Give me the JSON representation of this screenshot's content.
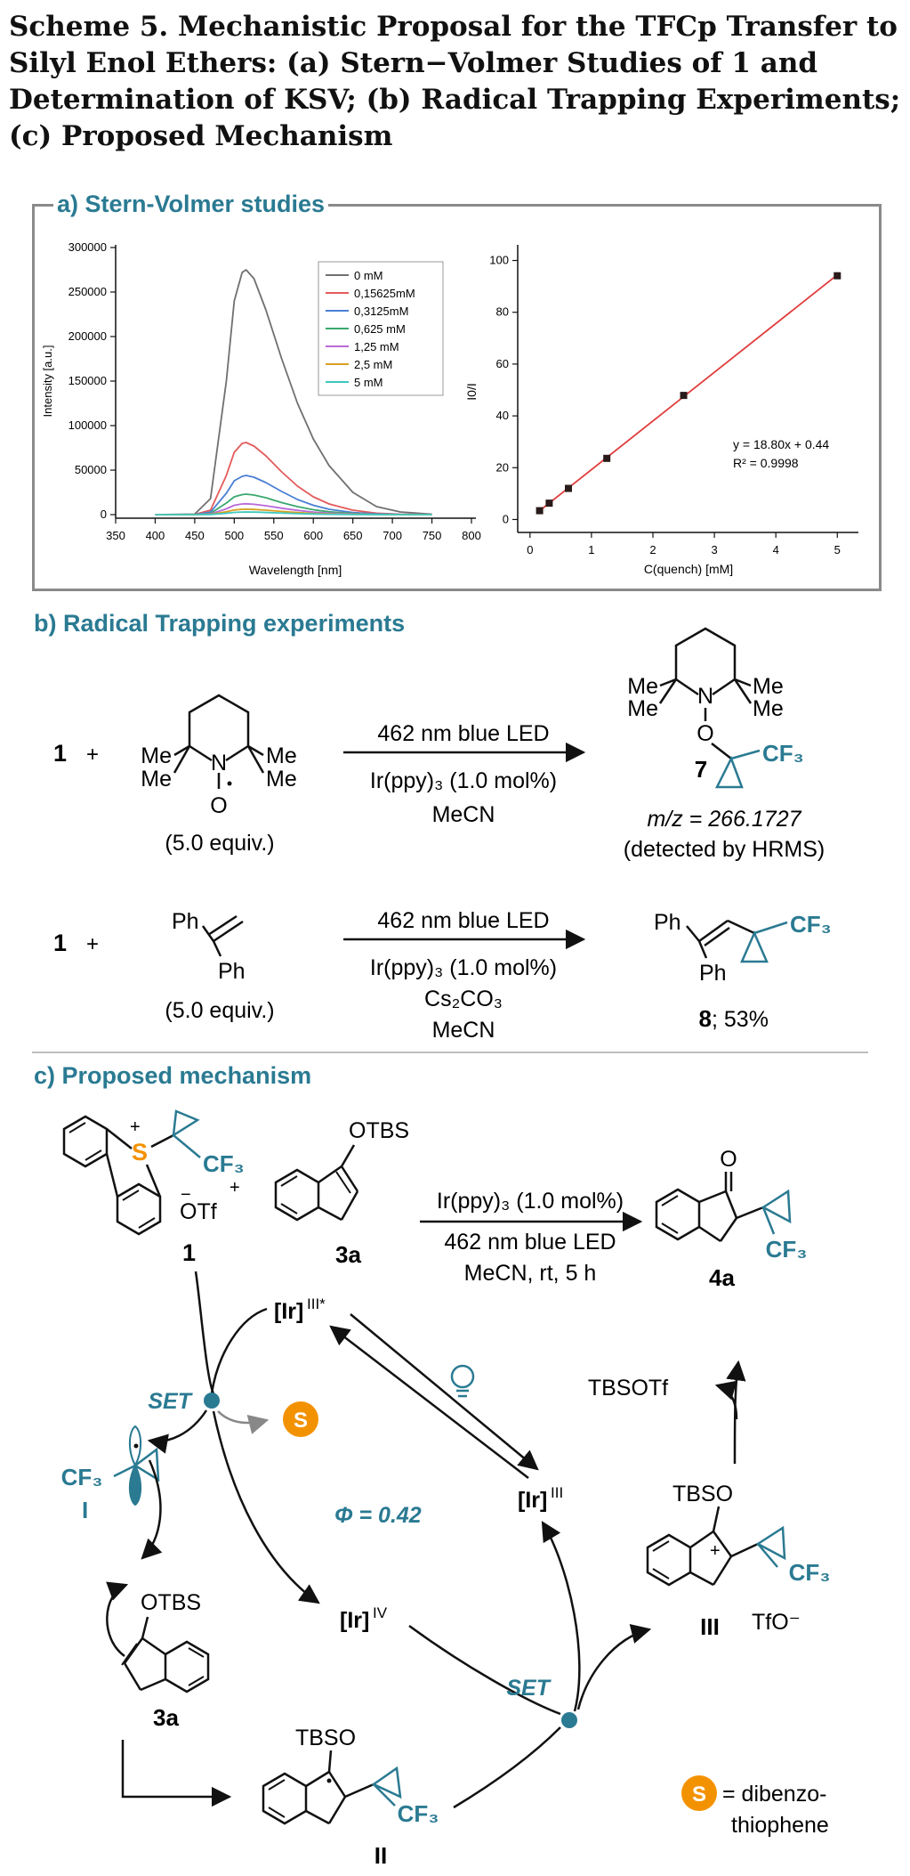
{
  "caption": "Scheme 5. Mechanistic Proposal for the TFCp Transfer to Silyl Enol Ethers: (a) Stern−Volmer Studies of 1 and Determination of KSV; (b) Radical Trapping Experiments; (c) Proposed Mechanism",
  "sections": {
    "a": "a) Stern-Volmer studies",
    "b": "b) Radical Trapping experiments",
    "c": "c) Proposed mechanism"
  },
  "colors": {
    "accent": "#2a7a92",
    "sulfur": "#f39200",
    "fit_line": "#e03c3c"
  },
  "chart_data": [
    {
      "type": "line",
      "xlabel": "Wavelength [nm]",
      "ylabel": "Intensity [a.u.]",
      "xlim": [
        350,
        800
      ],
      "ylim": [
        0,
        300000
      ],
      "xticks": [
        350,
        400,
        450,
        500,
        550,
        600,
        650,
        700,
        750,
        800
      ],
      "yticks": [
        0,
        50000,
        100000,
        150000,
        200000,
        250000,
        300000
      ],
      "legend_position": "top-right",
      "x": [
        400,
        450,
        470,
        490,
        500,
        510,
        515,
        525,
        540,
        560,
        580,
        600,
        620,
        650,
        680,
        710,
        750
      ],
      "series": [
        {
          "name": "0 mM",
          "color": "#707070",
          "values": [
            0,
            600,
            18000,
            150000,
            240000,
            272000,
            275000,
            265000,
            230000,
            175000,
            125000,
            85000,
            55000,
            25000,
            9000,
            3000,
            500
          ]
        },
        {
          "name": "0,15625mM",
          "color": "#e35b5b",
          "values": [
            0,
            200,
            5000,
            44000,
            70000,
            80000,
            81000,
            77000,
            66000,
            48000,
            32000,
            20000,
            12000,
            5000,
            1600,
            500,
            100
          ]
        },
        {
          "name": "0,3125mM",
          "color": "#4a7fd4",
          "values": [
            0,
            120,
            2800,
            24000,
            38000,
            43000,
            44000,
            42000,
            36000,
            26000,
            17000,
            10500,
            6000,
            2400,
            800,
            250,
            50
          ]
        },
        {
          "name": "0,625 mM",
          "color": "#3aa86e",
          "values": [
            0,
            70,
            1500,
            13000,
            20000,
            22500,
            23000,
            22000,
            19000,
            13500,
            9000,
            5500,
            3200,
            1300,
            400,
            120,
            20
          ]
        },
        {
          "name": "1,25 mM",
          "color": "#b96ad9",
          "values": [
            0,
            40,
            800,
            6500,
            10500,
            12000,
            12200,
            11600,
            10000,
            7200,
            4800,
            2900,
            1700,
            700,
            200,
            60,
            10
          ]
        },
        {
          "name": "2,5 mM",
          "color": "#d9a020",
          "values": [
            0,
            20,
            400,
            3200,
            5200,
            6000,
            6100,
            5800,
            5000,
            3600,
            2400,
            1400,
            800,
            330,
            100,
            30,
            5
          ]
        },
        {
          "name": "5 mM",
          "color": "#3cc8c0",
          "values": [
            0,
            10,
            180,
            1500,
            2500,
            2900,
            3000,
            2850,
            2450,
            1750,
            1150,
            700,
            400,
            160,
            50,
            15,
            2
          ]
        }
      ]
    },
    {
      "type": "scatter",
      "xlabel": "C(quench) [mM]",
      "ylabel": "I0/I",
      "xlim": [
        -0.2,
        5.3
      ],
      "ylim": [
        -5,
        105
      ],
      "xticks": [
        0,
        1,
        2,
        3,
        4,
        5
      ],
      "yticks": [
        0,
        20,
        40,
        60,
        80,
        100
      ],
      "x": [
        0.15625,
        0.3125,
        0.625,
        1.25,
        2.5,
        5
      ],
      "values": [
        3.4,
        6.3,
        12.0,
        23.6,
        47.9,
        94.1
      ],
      "fit": {
        "slope": 18.8,
        "intercept": 0.44
      },
      "annotation": [
        "y = 18.80x + 0.44",
        "R² = 0.9998"
      ]
    }
  ],
  "trapping": {
    "r1": {
      "reactant": "1",
      "plus": "+",
      "equiv": "(5.0 equiv.)",
      "cond_top": "462 nm blue LED",
      "cond_bottom": [
        "Ir(ppy)₃ (1.0 mol%)",
        "MeCN"
      ],
      "product_num": "7",
      "mz": "m/z = 266.1727",
      "detected": "(detected by HRMS)",
      "me": "Me",
      "n": "N",
      "o": "O",
      "cf3": "CF₃"
    },
    "r2": {
      "reactant": "1",
      "plus": "+",
      "equiv": "(5.0 equiv.)",
      "cond_top": "462 nm blue LED",
      "cond_bottom": [
        "Ir(ppy)₃ (1.0 mol%)",
        "Cs₂CO₃",
        "MeCN"
      ],
      "ph": "Ph",
      "product_num": "8",
      "yield": "; 53%",
      "cf3": "CF₃"
    }
  },
  "mechanism": {
    "reagent_1": "1",
    "s_plus": "S",
    "otf": "OTf",
    "cf3": "CF₃",
    "otbs": "OTBS",
    "label_3a": "3a",
    "cond": [
      "Ir(ppy)₃ (1.0 mol%)",
      "462 nm blue LED",
      "MeCN, rt, 5 h"
    ],
    "ketone_o": "O",
    "label_4a": "4a",
    "ir3star": "[Ir]III*",
    "ir3": "[Ir]III",
    "ir4": "[Ir]IV",
    "set": "SET",
    "s_circle": "S",
    "label_I": "I",
    "phi": "Φ = 0.42",
    "tbsotf": "TBSOTf",
    "tbso": "TBSO",
    "tfo": "TfO⁻",
    "label_II": "II",
    "label_III": "III",
    "legend": [
      "= dibenzo-",
      "thiophene"
    ]
  }
}
